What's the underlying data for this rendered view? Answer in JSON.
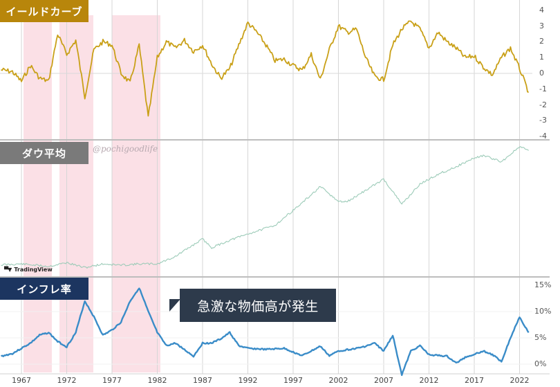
{
  "panels": {
    "yield_curve": {
      "label": "イールドカーブ",
      "color": "#b8860b",
      "label_bg": "#b8860b"
    },
    "dow": {
      "label": "ダウ平均",
      "label_bg": "#7a7a7a",
      "up_color": "#8fd3b6",
      "down_color": "#e89aa8"
    },
    "inflation": {
      "label": "インフレ率",
      "label_bg": "#1c3560",
      "color": "#3a8cc8"
    }
  },
  "watermark": "@pochigoodlife",
  "tradingview_logo": "TradingView",
  "callout": {
    "text": "急激な物価高が発生"
  },
  "x_axis": {
    "ticks": [
      "1967",
      "1972",
      "1977",
      "1982",
      "1987",
      "1992",
      "1997",
      "2002",
      "2007",
      "2012",
      "2017",
      "2022"
    ]
  },
  "y_axis_yield": {
    "ticks": [
      "4",
      "3",
      "2",
      "1",
      "0",
      "-1",
      "-2",
      "-3",
      "-4"
    ]
  },
  "y_axis_inflation": {
    "ticks": [
      "15%",
      "10%",
      "5%",
      "0%"
    ]
  },
  "highlight_color": "#fbdde4",
  "chart_data": [
    {
      "type": "line",
      "title": "イールドカーブ",
      "xlabel": "",
      "ylabel": "",
      "ylim": [
        -4,
        4
      ],
      "x": [
        1964,
        1966,
        1967,
        1968,
        1969,
        1970,
        1971,
        1972,
        1973,
        1974,
        1975,
        1976,
        1977,
        1978,
        1979,
        1980,
        1981,
        1982,
        1983,
        1984,
        1985,
        1986,
        1987,
        1988,
        1989,
        1990,
        1991,
        1992,
        1993,
        1994,
        1995,
        1996,
        1997,
        1998,
        1999,
        2000,
        2001,
        2002,
        2003,
        2004,
        2005,
        2006,
        2007,
        2008,
        2009,
        2010,
        2011,
        2012,
        2013,
        2014,
        2015,
        2016,
        2017,
        2018,
        2019,
        2020,
        2021,
        2022,
        2023
      ],
      "values": [
        0.3,
        0.1,
        -0.5,
        0.5,
        -0.3,
        -0.5,
        2.5,
        1.2,
        2.1,
        -1.5,
        1.5,
        2.0,
        1.8,
        0.0,
        -0.6,
        1.8,
        -2.8,
        1.0,
        2.0,
        1.6,
        2.1,
        1.4,
        1.8,
        0.6,
        -0.3,
        0.3,
        1.8,
        3.2,
        2.6,
        1.8,
        0.8,
        0.9,
        0.5,
        0.2,
        1.2,
        -0.4,
        1.5,
        3.0,
        2.6,
        2.8,
        1.0,
        -0.2,
        -0.4,
        1.8,
        2.8,
        3.3,
        2.8,
        1.6,
        2.6,
        2.0,
        1.6,
        1.0,
        1.1,
        0.4,
        -0.1,
        1.0,
        1.6,
        0.3,
        -1.2
      ],
      "series_name": "イールドカーブ"
    },
    {
      "type": "line",
      "title": "ダウ平均",
      "xlabel": "",
      "ylabel": "",
      "x": [
        1964,
        1967,
        1970,
        1972,
        1974,
        1976,
        1978,
        1980,
        1982,
        1984,
        1987,
        1988,
        1990,
        1992,
        1995,
        1998,
        2000,
        2002,
        2003,
        2005,
        2007,
        2009,
        2011,
        2013,
        2015,
        2017,
        2018,
        2020,
        2022,
        2023
      ],
      "values": [
        0.05,
        0.06,
        0.04,
        0.07,
        0.03,
        0.06,
        0.05,
        0.06,
        0.06,
        0.12,
        0.26,
        0.19,
        0.25,
        0.3,
        0.37,
        0.55,
        0.68,
        0.56,
        0.56,
        0.65,
        0.74,
        0.54,
        0.7,
        0.78,
        0.84,
        0.91,
        0.93,
        0.88,
        1.0,
        0.97
      ],
      "note": "normalized log-scale position (0=bottom,1=top of panel)"
    },
    {
      "type": "line",
      "title": "インフレ率",
      "xlabel": "",
      "ylabel": "",
      "ylim": [
        0,
        15
      ],
      "x": [
        1964,
        1966,
        1967,
        1968,
        1969,
        1970,
        1971,
        1972,
        1973,
        1974,
        1975,
        1976,
        1977,
        1978,
        1979,
        1980,
        1981,
        1982,
        1983,
        1984,
        1986,
        1987,
        1988,
        1989,
        1990,
        1991,
        1992,
        1994,
        1996,
        1998,
        2000,
        2001,
        2002,
        2004,
        2005,
        2006,
        2007,
        2008,
        2009,
        2010,
        2011,
        2012,
        2014,
        2015,
        2016,
        2018,
        2019,
        2020,
        2021,
        2022,
        2023
      ],
      "values": [
        1.2,
        2.0,
        3.0,
        4.0,
        5.5,
        6.0,
        4.3,
        3.3,
        6.0,
        12.0,
        9.0,
        5.5,
        6.5,
        8.0,
        12.0,
        14.5,
        10.0,
        6.0,
        3.5,
        4.0,
        1.5,
        4.0,
        4.0,
        4.8,
        6.0,
        3.5,
        3.0,
        2.8,
        3.0,
        1.6,
        3.4,
        1.6,
        2.5,
        3.0,
        3.4,
        4.0,
        2.5,
        5.5,
        -2.0,
        2.5,
        3.5,
        1.8,
        1.5,
        0.2,
        1.3,
        2.5,
        1.8,
        0.5,
        5.0,
        9.0,
        6.0
      ]
    }
  ]
}
